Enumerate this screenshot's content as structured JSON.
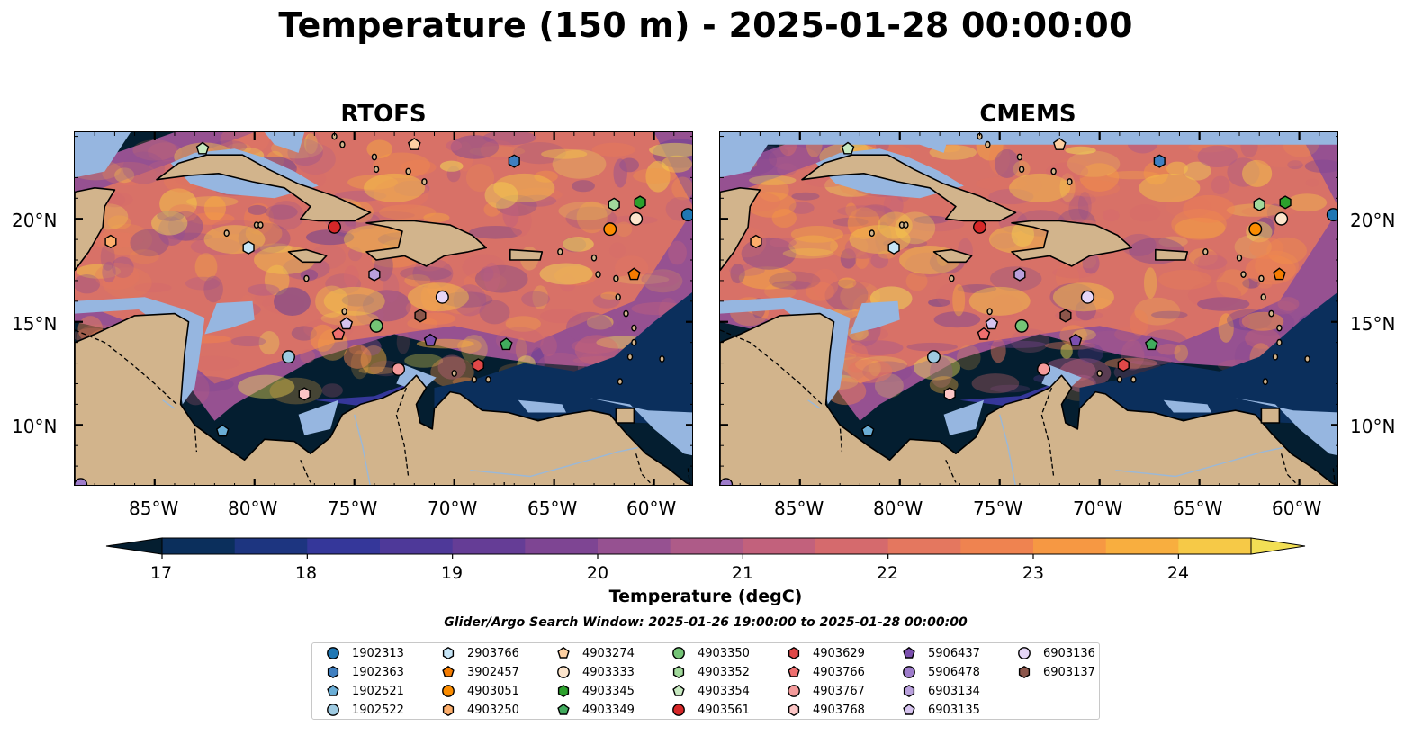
{
  "title": "Temperature (150 m) - 2025-01-28 00:00:00",
  "panels": [
    {
      "id": "rtofs",
      "title": "RTOFS"
    },
    {
      "id": "cmems",
      "title": "CMEMS"
    }
  ],
  "map": {
    "lon_range": [
      -89.0,
      -58.0
    ],
    "lat_range": [
      7.0,
      24.2
    ],
    "lon_ticks": [
      "85°W",
      "80°W",
      "75°W",
      "70°W",
      "65°W",
      "60°W"
    ],
    "lat_ticks": [
      "20°N",
      "15°N",
      "10°N"
    ],
    "colors": {
      "land": "#d2b48c",
      "shelf": "#96b6e0",
      "deep": "#041e30"
    }
  },
  "colorbar": {
    "min": 17,
    "max": 24.5,
    "ticks": [
      "17",
      "18",
      "19",
      "20",
      "21",
      "22",
      "23",
      "24"
    ],
    "label": "Temperature (degC)",
    "colors": [
      "#041e30",
      "#0b2f5c",
      "#1d3580",
      "#35379a",
      "#4e3999",
      "#653d96",
      "#7e4593",
      "#965191",
      "#ae5b88",
      "#c2617c",
      "#d56a6d",
      "#e4775f",
      "#ef8350",
      "#f69843",
      "#f8ae3f",
      "#f6c947",
      "#f2df55"
    ]
  },
  "search_window": "Glider/Argo Search Window: 2025-01-26 19:00:00 to 2025-01-28 00:00:00",
  "floats": [
    {
      "id": "1902313",
      "marker": "circle",
      "color": "#1f77b4",
      "lon": -58.3,
      "lat": 20.2
    },
    {
      "id": "1902363",
      "marker": "hexagon",
      "color": "#3f7fc0",
      "lon": -67.0,
      "lat": 22.8
    },
    {
      "id": "1902521",
      "marker": "pentagon",
      "color": "#6baed6",
      "lon": -81.6,
      "lat": 9.7
    },
    {
      "id": "1902522",
      "marker": "circle",
      "color": "#9ecae1",
      "lon": -78.3,
      "lat": 13.3
    },
    {
      "id": "2903766",
      "marker": "hexagon",
      "color": "#c6e5f7",
      "lon": -80.3,
      "lat": 18.6
    },
    {
      "id": "3902457",
      "marker": "pentagon",
      "color": "#f57c00",
      "lon": -61.0,
      "lat": 17.3
    },
    {
      "id": "4903051",
      "marker": "circle",
      "color": "#fb8c00",
      "lon": -62.2,
      "lat": 19.5
    },
    {
      "id": "4903250",
      "marker": "hexagon",
      "color": "#fdae6b",
      "lon": -87.2,
      "lat": 18.9
    },
    {
      "id": "4903274",
      "marker": "pentagon",
      "color": "#fdd0a2",
      "lon": -72.0,
      "lat": 23.6
    },
    {
      "id": "4903333",
      "marker": "circle",
      "color": "#fde5cc",
      "lon": -60.9,
      "lat": 20.0
    },
    {
      "id": "4903345",
      "marker": "hexagon",
      "color": "#2ca02c",
      "lon": -60.7,
      "lat": 20.8
    },
    {
      "id": "4903349",
      "marker": "pentagon",
      "color": "#41ab5d",
      "lon": -67.4,
      "lat": 13.9
    },
    {
      "id": "4903350",
      "marker": "circle",
      "color": "#74c476",
      "lon": -73.9,
      "lat": 14.8
    },
    {
      "id": "4903352",
      "marker": "hexagon",
      "color": "#a1d99b",
      "lon": -62.0,
      "lat": 20.7
    },
    {
      "id": "4903354",
      "marker": "pentagon",
      "color": "#c7e9c0",
      "lon": -82.6,
      "lat": 23.4
    },
    {
      "id": "4903561",
      "marker": "circle",
      "color": "#d62728",
      "lon": -76.0,
      "lat": 19.6
    },
    {
      "id": "4903629",
      "marker": "hexagon",
      "color": "#e04848",
      "lon": -68.8,
      "lat": 12.9
    },
    {
      "id": "4903766",
      "marker": "pentagon",
      "color": "#ef6f6f",
      "lon": -75.8,
      "lat": 14.4
    },
    {
      "id": "4903767",
      "marker": "circle",
      "color": "#f49b9b",
      "lon": -72.8,
      "lat": 12.7
    },
    {
      "id": "4903768",
      "marker": "hexagon",
      "color": "#fcc5c5",
      "lon": -77.5,
      "lat": 11.5
    },
    {
      "id": "5906437",
      "marker": "pentagon",
      "color": "#7b4fae",
      "lon": -71.2,
      "lat": 14.1
    },
    {
      "id": "5906478",
      "marker": "circle",
      "color": "#9e7ccb",
      "lon": -88.7,
      "lat": 7.1
    },
    {
      "id": "6903134",
      "marker": "hexagon",
      "color": "#b9a0dc",
      "lon": -74.0,
      "lat": 17.3
    },
    {
      "id": "6903135",
      "marker": "pentagon",
      "color": "#d6c3ef",
      "lon": -75.4,
      "lat": 14.9
    },
    {
      "id": "6903136",
      "marker": "circle",
      "color": "#e6d6f7",
      "lon": -70.6,
      "lat": 16.2
    },
    {
      "id": "6903137",
      "marker": "hexagon",
      "color": "#8c564b",
      "lon": -71.7,
      "lat": 15.3
    }
  ]
}
